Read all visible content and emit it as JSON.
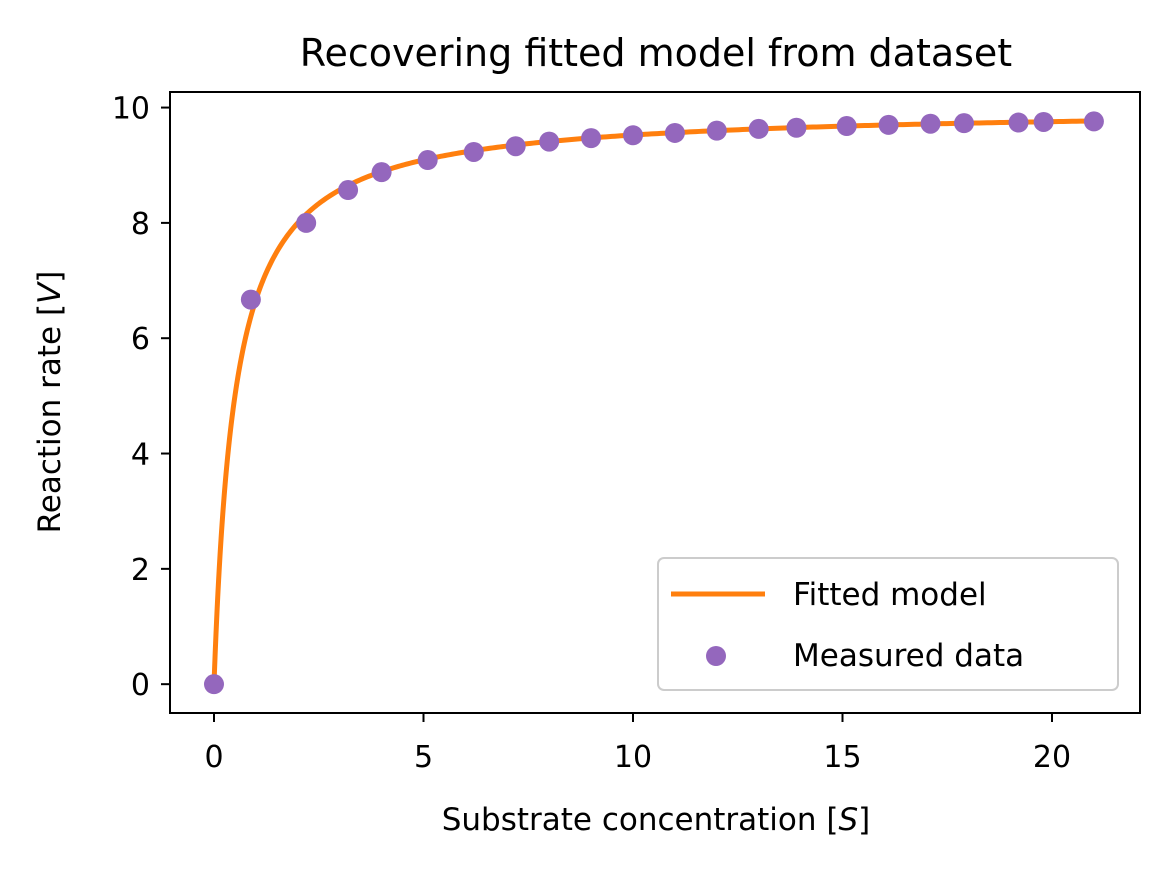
{
  "chart_data": {
    "type": "scatter",
    "title": "Recovering fitted model from dataset",
    "xlabel_prefix": "Substrate concentration [",
    "xlabel_var": "S",
    "xlabel_suffix": "]",
    "ylabel_prefix": "Reaction rate [",
    "ylabel_var": "V",
    "ylabel_suffix": "]",
    "xlim": [
      -1.05,
      22.1
    ],
    "ylim": [
      -0.5,
      10.27
    ],
    "xticks": [
      0,
      5,
      10,
      15,
      20
    ],
    "yticks": [
      0,
      2,
      4,
      6,
      8,
      10
    ],
    "grid": false,
    "legend_position": "lower-right",
    "colors": {
      "fitted": "#ff7f0e",
      "measured": "#9467bd"
    },
    "series": [
      {
        "name": "Fitted model",
        "kind": "line",
        "model": "michaelis-menten",
        "vmax": 10.0,
        "km": 0.5,
        "x_range": [
          0,
          21
        ]
      },
      {
        "name": "Measured data",
        "kind": "scatter",
        "x": [
          0,
          0.88,
          2.2,
          3.2,
          4.0,
          5.1,
          6.2,
          7.2,
          8.0,
          9.0,
          10.0,
          11.0,
          12.0,
          13.0,
          13.9,
          15.1,
          16.1,
          17.1,
          17.9,
          19.2,
          19.8,
          21.0
        ],
        "y": [
          0,
          6.67,
          8.0,
          8.57,
          8.88,
          9.09,
          9.23,
          9.33,
          9.41,
          9.47,
          9.52,
          9.56,
          9.6,
          9.63,
          9.65,
          9.68,
          9.7,
          9.72,
          9.73,
          9.74,
          9.75,
          9.76
        ]
      }
    ]
  }
}
